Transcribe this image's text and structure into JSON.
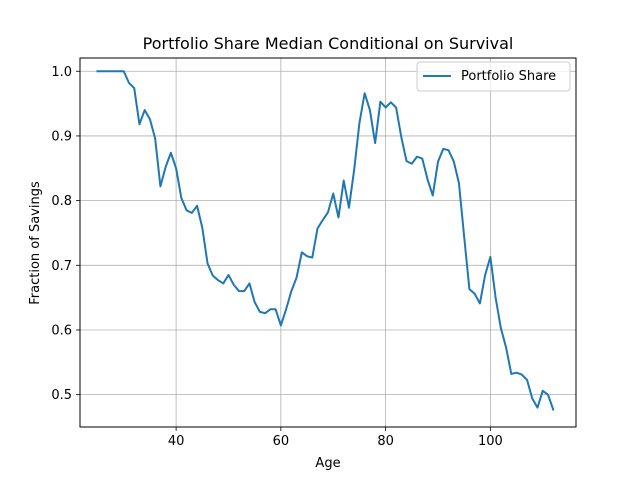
{
  "chart_data": {
    "type": "line",
    "title": "Portfolio Share Median Conditional on Survival",
    "xlabel": "Age",
    "ylabel": "Fraction of Savings",
    "xlim": [
      21.65,
      116.35
    ],
    "ylim": [
      0.45,
      1.0205
    ],
    "xticks": [
      40,
      60,
      80,
      100
    ],
    "yticks": [
      0.5,
      0.6,
      0.7,
      0.8,
      0.9,
      1.0
    ],
    "xtick_labels": [
      "40",
      "60",
      "80",
      "100"
    ],
    "ytick_labels": [
      "0.5",
      "0.6",
      "0.7",
      "0.8",
      "0.9",
      "1.0"
    ],
    "grid": true,
    "legend_position": "upper right",
    "series": [
      {
        "name": "Portfolio Share",
        "color": "#1f77b4",
        "x": [
          25,
          26,
          27,
          28,
          29,
          30,
          31,
          32,
          33,
          34,
          35,
          36,
          37,
          38,
          39,
          40,
          41,
          42,
          43,
          44,
          45,
          46,
          47,
          48,
          49,
          50,
          51,
          52,
          53,
          54,
          55,
          56,
          57,
          58,
          59,
          60,
          61,
          62,
          63,
          64,
          65,
          66,
          67,
          68,
          69,
          70,
          71,
          72,
          73,
          74,
          75,
          76,
          77,
          78,
          79,
          80,
          81,
          82,
          83,
          84,
          85,
          86,
          87,
          88,
          89,
          90,
          91,
          92,
          93,
          94,
          95,
          96,
          97,
          98,
          99,
          100,
          101,
          102,
          103,
          104,
          105,
          106,
          107,
          108,
          109,
          110,
          111,
          112
        ],
        "y": [
          1.0,
          1.0,
          1.0,
          1.0,
          1.0,
          1.0,
          0.982,
          0.974,
          0.918,
          0.94,
          0.926,
          0.896,
          0.822,
          0.852,
          0.874,
          0.85,
          0.804,
          0.785,
          0.781,
          0.792,
          0.758,
          0.703,
          0.684,
          0.677,
          0.672,
          0.685,
          0.67,
          0.66,
          0.66,
          0.672,
          0.643,
          0.628,
          0.626,
          0.632,
          0.632,
          0.607,
          0.632,
          0.66,
          0.681,
          0.72,
          0.714,
          0.712,
          0.757,
          0.77,
          0.782,
          0.811,
          0.774,
          0.831,
          0.789,
          0.848,
          0.92,
          0.966,
          0.94,
          0.889,
          0.953,
          0.944,
          0.952,
          0.944,
          0.898,
          0.861,
          0.857,
          0.868,
          0.865,
          0.833,
          0.808,
          0.86,
          0.88,
          0.878,
          0.861,
          0.827,
          0.744,
          0.663,
          0.656,
          0.641,
          0.685,
          0.713,
          0.65,
          0.603,
          0.573,
          0.532,
          0.534,
          0.531,
          0.523,
          0.494,
          0.48,
          0.506,
          0.5,
          0.477
        ]
      }
    ]
  }
}
